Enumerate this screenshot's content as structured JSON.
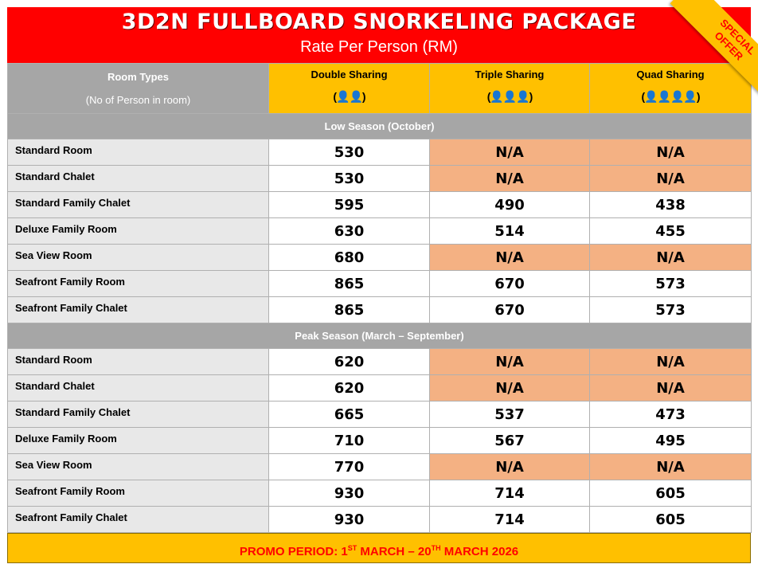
{
  "header": {
    "title": "3D2N FULLBOARD SNORKELING PACKAGE",
    "subtitle": "Rate Per Person (RM)",
    "ribbon_line1": "SPECIAL",
    "ribbon_line2": "OFFER"
  },
  "columns": {
    "room_types": "Room Types",
    "room_sub": "(No of Person in room)",
    "double": "Double Sharing",
    "triple": "Triple Sharing",
    "quad": "Quad Sharing"
  },
  "seasons": [
    {
      "name": "Low Season (October)",
      "rows": [
        {
          "room": "Standard Room",
          "double": "530",
          "triple": "N/A",
          "quad": "N/A"
        },
        {
          "room": "Standard Chalet",
          "double": "530",
          "triple": "N/A",
          "quad": "N/A"
        },
        {
          "room": "Standard Family Chalet",
          "double": "595",
          "triple": "490",
          "quad": "438"
        },
        {
          "room": "Deluxe Family Room",
          "double": "630",
          "triple": "514",
          "quad": "455"
        },
        {
          "room": "Sea View Room",
          "double": "680",
          "triple": "N/A",
          "quad": "N/A"
        },
        {
          "room": "Seafront Family Room",
          "double": "865",
          "triple": "670",
          "quad": "573"
        },
        {
          "room": "Seafront Family Chalet",
          "double": "865",
          "triple": "670",
          "quad": "573"
        }
      ]
    },
    {
      "name": "Peak Season (March – September)",
      "rows": [
        {
          "room": "Standard Room",
          "double": "620",
          "triple": "N/A",
          "quad": "N/A"
        },
        {
          "room": "Standard Chalet",
          "double": "620",
          "triple": "N/A",
          "quad": "N/A"
        },
        {
          "room": "Standard Family Chalet",
          "double": "665",
          "triple": "537",
          "quad": "473"
        },
        {
          "room": "Deluxe Family Room",
          "double": "710",
          "triple": "567",
          "quad": "495"
        },
        {
          "room": "Sea View Room",
          "double": "770",
          "triple": "N/A",
          "quad": "N/A"
        },
        {
          "room": "Seafront Family Room",
          "double": "930",
          "triple": "714",
          "quad": "605"
        },
        {
          "room": "Seafront Family Chalet",
          "double": "930",
          "triple": "714",
          "quad": "605"
        }
      ]
    }
  ],
  "footer": {
    "prefix": "PROMO PERIOD: 1",
    "sup1": "ST",
    "middle": " MARCH – 20",
    "sup2": "TH",
    "suffix": " MARCH 2026"
  },
  "colors": {
    "header_red": "#ff0000",
    "gold": "#ffc000",
    "na_fill": "#f4b183",
    "grey": "#a6a6a6"
  }
}
